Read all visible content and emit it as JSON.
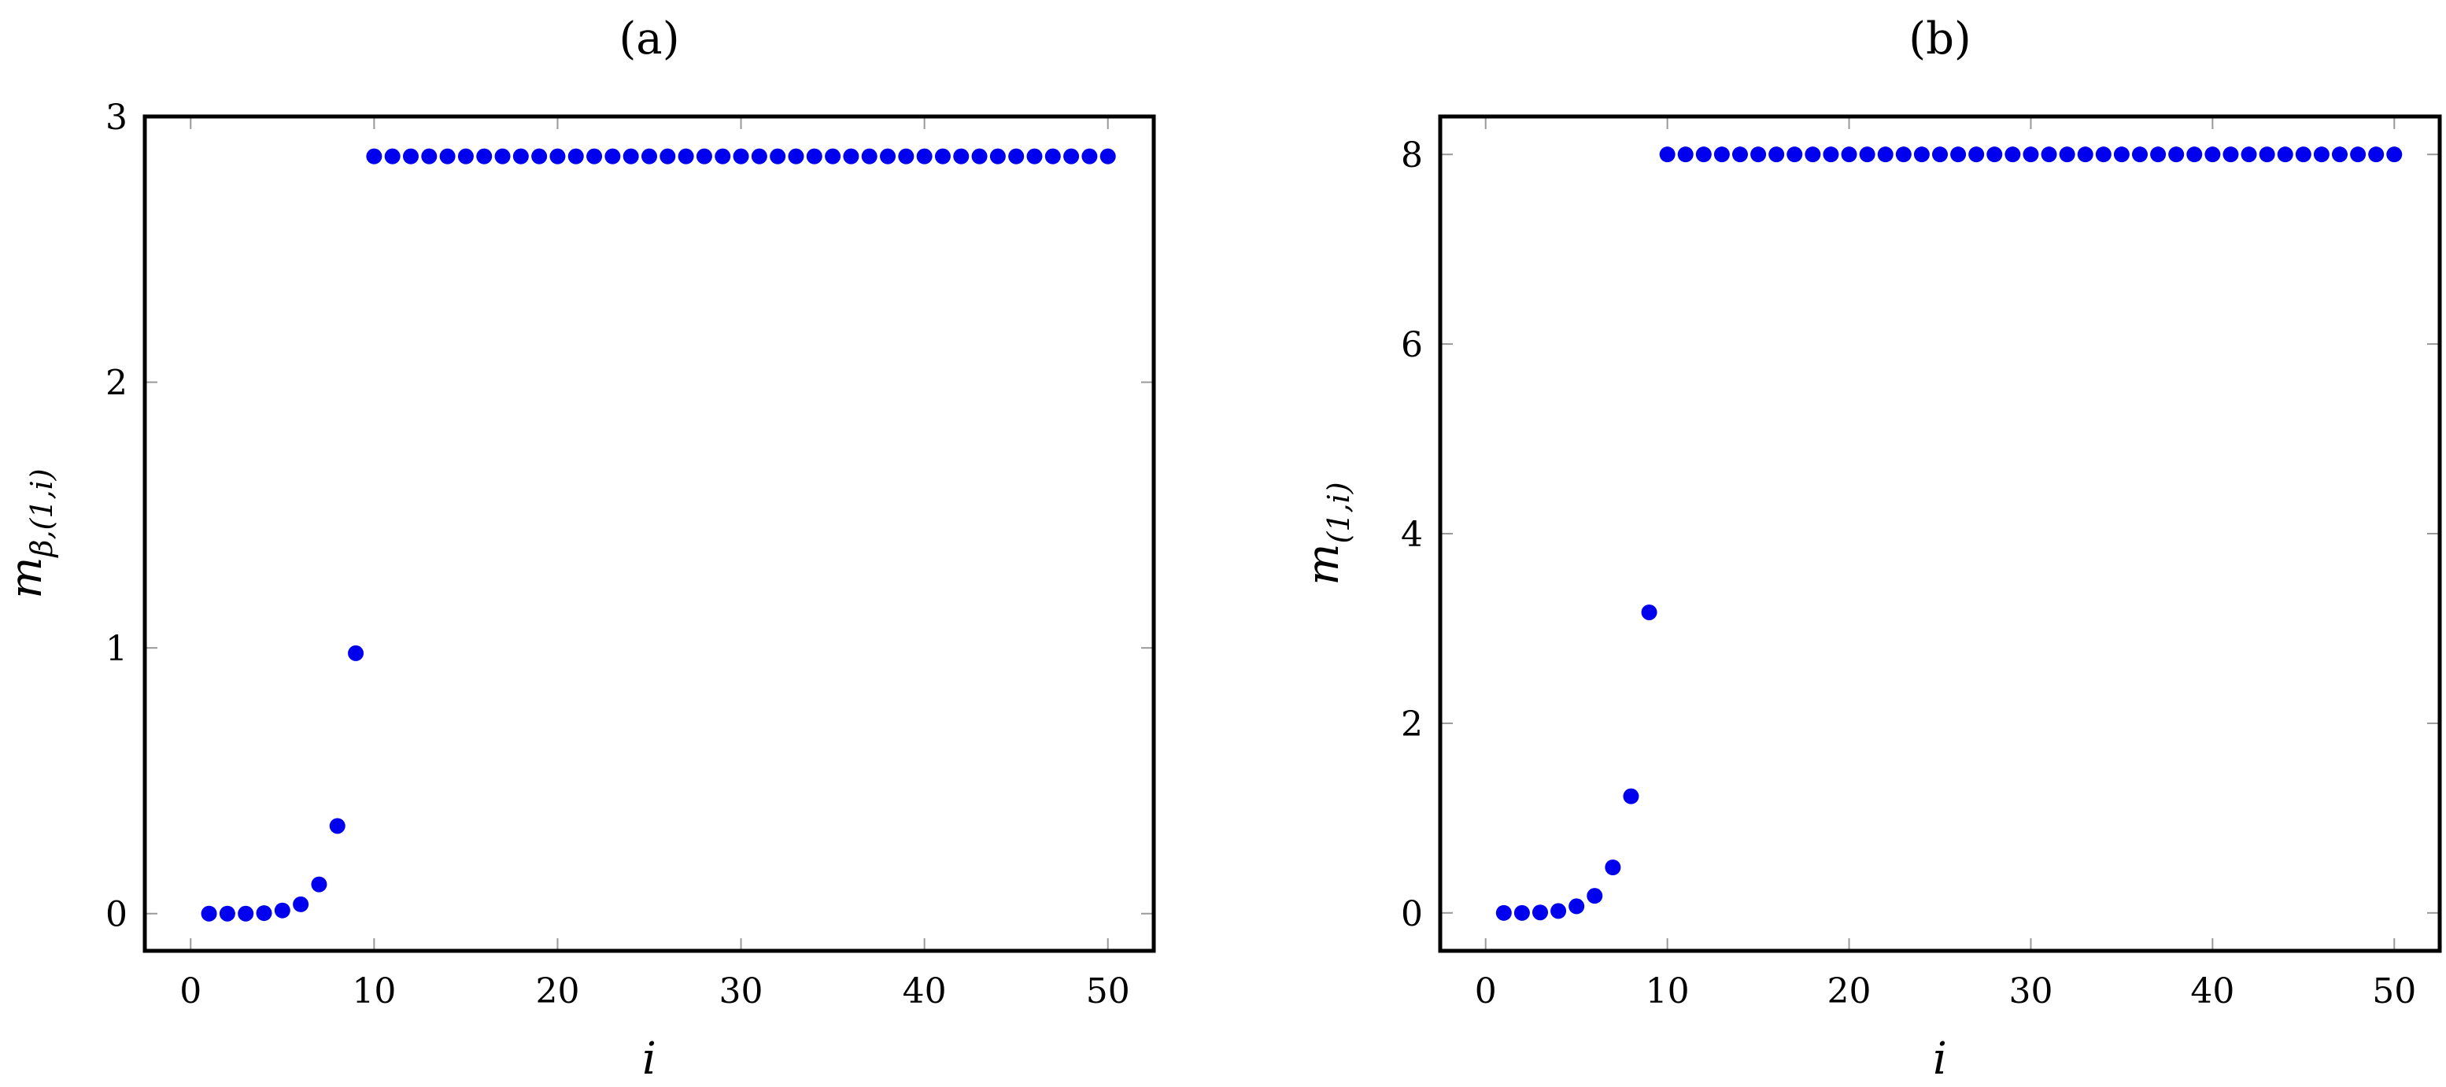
{
  "chart_data": [
    {
      "type": "scatter",
      "title": "(a)",
      "xlabel": "i",
      "ylabel": {
        "base": "m",
        "subscript": "β,(1,i)"
      },
      "xlim": [
        -2.5,
        52.5
      ],
      "ylim": [
        -0.14,
        3.0
      ],
      "xticks": [
        0,
        10,
        20,
        30,
        40,
        50
      ],
      "yticks": [
        0,
        1,
        2,
        3
      ],
      "grid": false,
      "color": "#0000ee",
      "series": [
        {
          "x": [
            1,
            2,
            3,
            4,
            5,
            6,
            7,
            8,
            9,
            10,
            11,
            12,
            13,
            14,
            15,
            16,
            17,
            18,
            19,
            20,
            21,
            22,
            23,
            24,
            25,
            26,
            27,
            28,
            29,
            30,
            31,
            32,
            33,
            34,
            35,
            36,
            37,
            38,
            39,
            40,
            41,
            42,
            43,
            44,
            45,
            46,
            47,
            48,
            49,
            50
          ],
          "y": [
            0.0,
            0.0,
            0.0,
            0.002,
            0.012,
            0.035,
            0.11,
            0.33,
            0.98,
            2.85,
            2.85,
            2.85,
            2.85,
            2.85,
            2.85,
            2.85,
            2.85,
            2.85,
            2.85,
            2.85,
            2.85,
            2.85,
            2.85,
            2.85,
            2.85,
            2.85,
            2.85,
            2.85,
            2.85,
            2.85,
            2.85,
            2.85,
            2.85,
            2.85,
            2.85,
            2.85,
            2.85,
            2.85,
            2.85,
            2.85,
            2.85,
            2.85,
            2.85,
            2.85,
            2.85,
            2.85,
            2.85,
            2.85,
            2.85,
            2.85
          ]
        }
      ]
    },
    {
      "type": "scatter",
      "title": "(b)",
      "xlabel": "i",
      "ylabel": {
        "base": "m",
        "subscript": "(1,i)"
      },
      "xlim": [
        -2.5,
        52.5
      ],
      "ylim": [
        -0.4,
        8.4
      ],
      "xticks": [
        0,
        10,
        20,
        30,
        40,
        50
      ],
      "yticks": [
        0,
        2,
        4,
        6,
        8
      ],
      "grid": false,
      "color": "#0000ee",
      "series": [
        {
          "x": [
            1,
            2,
            3,
            4,
            5,
            6,
            7,
            8,
            9,
            10,
            11,
            12,
            13,
            14,
            15,
            16,
            17,
            18,
            19,
            20,
            21,
            22,
            23,
            24,
            25,
            26,
            27,
            28,
            29,
            30,
            31,
            32,
            33,
            34,
            35,
            36,
            37,
            38,
            39,
            40,
            41,
            42,
            43,
            44,
            45,
            46,
            47,
            48,
            49,
            50
          ],
          "y": [
            0.0,
            0.0,
            0.005,
            0.02,
            0.07,
            0.18,
            0.48,
            1.23,
            3.17,
            8.0,
            8.0,
            8.0,
            8.0,
            8.0,
            8.0,
            8.0,
            8.0,
            8.0,
            8.0,
            8.0,
            8.0,
            8.0,
            8.0,
            8.0,
            8.0,
            8.0,
            8.0,
            8.0,
            8.0,
            8.0,
            8.0,
            8.0,
            8.0,
            8.0,
            8.0,
            8.0,
            8.0,
            8.0,
            8.0,
            8.0,
            8.0,
            8.0,
            8.0,
            8.0,
            8.0,
            8.0,
            8.0,
            8.0,
            8.0,
            8.0
          ]
        }
      ]
    }
  ]
}
